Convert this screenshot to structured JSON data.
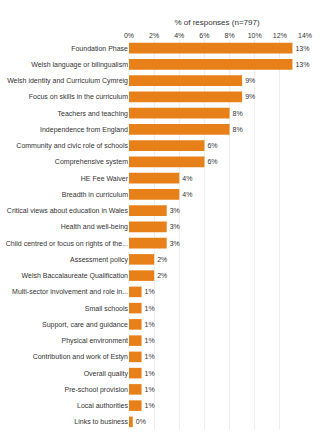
{
  "chart_data": {
    "type": "bar",
    "orientation": "horizontal",
    "categories": [
      "Foundation Phase",
      "Welsh language or bilingualism",
      "Welsh identity and Curriculum Cymreig",
      "Focus on skills in the curriculum",
      "Teachers and teaching",
      "Independence from England",
      "Community and civic role of schools",
      "Comprehensive system",
      "HE Fee Waiver",
      "Breadth in curriculum",
      "Critical views about education in Wales",
      "Health and well-being",
      "Child centred or focus on rights of the...",
      "Assessment policy",
      "Welsh Baccalaureate Qualification",
      "Multi-sector involvement and role in...",
      "Small schools",
      "Support, care and guidance",
      "Physical environment",
      "Contribution and work of Estyn",
      "Overall quality",
      "Pre-school provision",
      "Local authorities",
      "Links to business"
    ],
    "values": [
      13,
      13,
      9,
      9,
      8,
      8,
      6,
      6,
      4,
      4,
      3,
      3,
      3,
      2,
      2,
      1,
      1,
      1,
      1,
      1,
      1,
      1,
      1,
      0.3
    ],
    "value_labels": [
      "13%",
      "13%",
      "9%",
      "9%",
      "8%",
      "8%",
      "6%",
      "6%",
      "4%",
      "4%",
      "3%",
      "3%",
      "3%",
      "2%",
      "2%",
      "1%",
      "1%",
      "1%",
      "1%",
      "1%",
      "1%",
      "1%",
      "1%",
      "0%"
    ],
    "data_labels": true,
    "color": "#E8801A",
    "xlabel": "% of responses (n=797)",
    "xlim": [
      0,
      14
    ],
    "xticks": [
      {
        "value": 0,
        "label": "0%"
      },
      {
        "value": 2,
        "label": "2%"
      },
      {
        "value": 4,
        "label": "4%"
      },
      {
        "value": 6,
        "label": "6%"
      },
      {
        "value": 8,
        "label": "8%"
      },
      {
        "value": 10,
        "label": "10%"
      },
      {
        "value": 12,
        "label": "12%"
      },
      {
        "value": 14,
        "label": "14%"
      }
    ],
    "grid": true
  }
}
